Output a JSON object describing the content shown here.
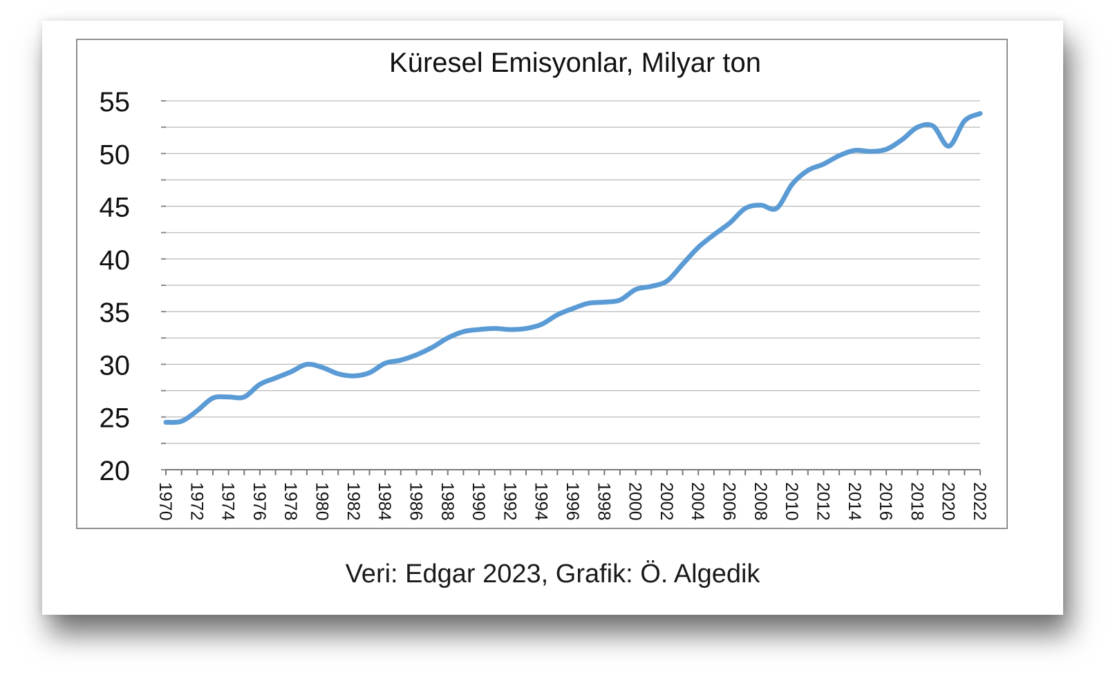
{
  "credit": "Veri: Edgar 2023, Grafik: Ö. Algedik",
  "chart_data": {
    "type": "line",
    "title": "Küresel Emisyonlar, Milyar ton",
    "xlabel": "",
    "ylabel": "",
    "ylim": [
      20,
      55
    ],
    "yticks": [
      20,
      25,
      30,
      35,
      40,
      45,
      50,
      55
    ],
    "xlim": [
      1970,
      2022
    ],
    "xticks": [
      1970,
      1972,
      1974,
      1976,
      1978,
      1980,
      1982,
      1984,
      1986,
      1988,
      1990,
      1992,
      1994,
      1996,
      1998,
      2000,
      2002,
      2004,
      2006,
      2008,
      2010,
      2012,
      2014,
      2016,
      2018,
      2020,
      2022
    ],
    "grid": true,
    "legend": "none",
    "line_color": "#5b9bd5",
    "series": [
      {
        "x": [
          1970,
          1971,
          1972,
          1973,
          1974,
          1975,
          1976,
          1977,
          1978,
          1979,
          1980,
          1981,
          1982,
          1983,
          1984,
          1985,
          1986,
          1987,
          1988,
          1989,
          1990,
          1991,
          1992,
          1993,
          1994,
          1995,
          1996,
          1997,
          1998,
          1999,
          2000,
          2001,
          2002,
          2003,
          2004,
          2005,
          2006,
          2007,
          2008,
          2009,
          2010,
          2011,
          2012,
          2013,
          2014,
          2015,
          2016,
          2017,
          2018,
          2019,
          2020,
          2021,
          2022
        ],
        "values": [
          24.5,
          24.6,
          25.6,
          26.8,
          26.9,
          26.9,
          28.1,
          28.7,
          29.3,
          30.0,
          29.7,
          29.1,
          28.9,
          29.2,
          30.1,
          30.4,
          30.9,
          31.6,
          32.5,
          33.1,
          33.3,
          33.4,
          33.3,
          33.4,
          33.8,
          34.7,
          35.3,
          35.8,
          35.9,
          36.1,
          37.1,
          37.4,
          37.9,
          39.5,
          41.1,
          42.3,
          43.4,
          44.8,
          45.1,
          44.8,
          47.1,
          48.4,
          49.0,
          49.8,
          50.3,
          50.2,
          50.4,
          51.3,
          52.5,
          52.6,
          50.7,
          53.1,
          53.8
        ]
      }
    ]
  }
}
